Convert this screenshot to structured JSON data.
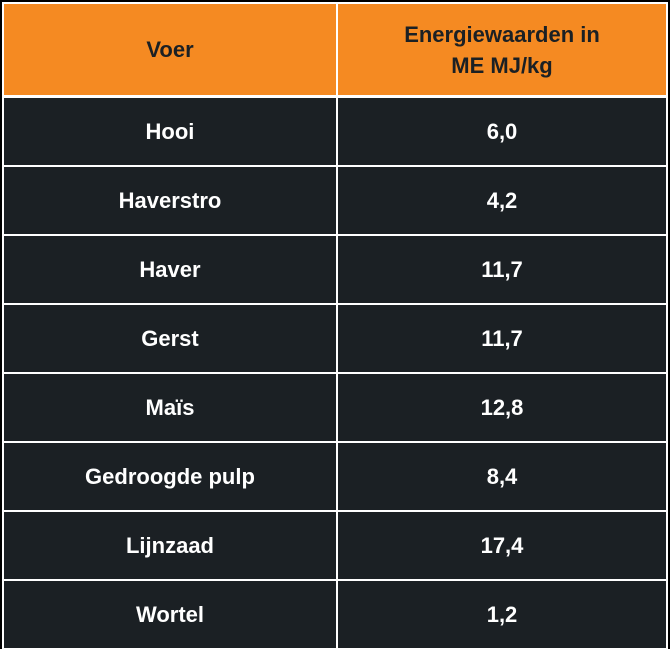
{
  "table": {
    "headers": [
      "Voer",
      "Energiewaarden in\nME MJ/kg"
    ],
    "rows": [
      {
        "feed": "Hooi",
        "value": "6,0"
      },
      {
        "feed": "Haverstro",
        "value": "4,2"
      },
      {
        "feed": "Haver",
        "value": "11,7"
      },
      {
        "feed": "Gerst",
        "value": "11,7"
      },
      {
        "feed": "Maïs",
        "value": "12,8"
      },
      {
        "feed": "Gedroogde pulp",
        "value": "8,4"
      },
      {
        "feed": "Lijnzaad",
        "value": "17,4"
      },
      {
        "feed": "Wortel",
        "value": "1,2"
      }
    ]
  },
  "colors": {
    "header_bg": "#f58a22",
    "body_bg": "#1b2024",
    "border": "#ffffff"
  }
}
